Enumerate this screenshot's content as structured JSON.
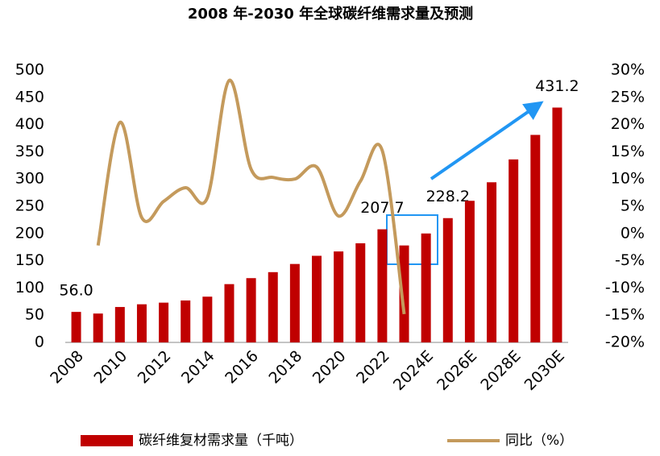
{
  "chart_data": {
    "type": "bar",
    "title": "2008 年-2030 年全球碳纤维需求量及预测",
    "categories": [
      "2008",
      null,
      "2010",
      null,
      "2012",
      null,
      "2014",
      null,
      "2016",
      null,
      "2018",
      null,
      "2020",
      null,
      "2022",
      null,
      "2024E",
      null,
      "2026E",
      null,
      "2028E",
      null,
      "2030E"
    ],
    "series": [
      {
        "name": "碳纤维复材需求量（千吨）",
        "color": "#c00000",
        "type": "bar",
        "values": [
          56,
          53,
          65,
          70,
          73,
          77,
          84,
          107,
          118,
          129,
          144,
          159,
          167,
          182,
          207.7,
          178,
          200,
          228.2,
          260,
          294,
          336,
          381,
          431.2
        ],
        "value_labels": [
          "56.0",
          null,
          null,
          null,
          null,
          null,
          null,
          null,
          null,
          null,
          null,
          null,
          null,
          null,
          "207.7",
          null,
          null,
          "228.2",
          null,
          null,
          null,
          null,
          "431.2"
        ]
      },
      {
        "name": "同比（%）",
        "color": "#c49a5c",
        "type": "line",
        "axis": "y2",
        "values": [
          null,
          -2.2,
          20.4,
          2.9,
          5.9,
          8.4,
          6.6,
          28.1,
          11.8,
          10.3,
          10.0,
          12.2,
          3.2,
          9.6,
          15.2,
          -14.8,
          null,
          null,
          null,
          null,
          null,
          null,
          null
        ]
      }
    ],
    "ylim": [
      0,
      500
    ],
    "yticks": [
      0,
      50,
      100,
      150,
      200,
      250,
      300,
      350,
      400,
      450,
      500
    ],
    "y2lim": [
      -20,
      30
    ],
    "y2ticks": [
      {
        "value": -20,
        "label": "-20%"
      },
      {
        "value": -15,
        "label": "-15%"
      },
      {
        "value": -10,
        "label": "-10%"
      },
      {
        "value": -5,
        "label": "-5%"
      },
      {
        "value": 0,
        "label": "0%"
      },
      {
        "value": 5,
        "label": "5%"
      },
      {
        "value": 10,
        "label": "10%"
      },
      {
        "value": 15,
        "label": "15%"
      },
      {
        "value": 20,
        "label": "20%"
      },
      {
        "value": 25,
        "label": "25%"
      },
      {
        "value": 30,
        "label": "30%"
      }
    ],
    "grid": false,
    "legend": "bottom"
  }
}
